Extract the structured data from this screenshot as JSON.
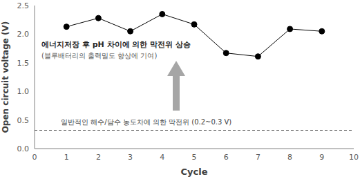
{
  "chart_data": {
    "type": "line",
    "x": [
      1,
      2,
      3,
      4,
      5,
      6,
      7,
      8,
      9
    ],
    "series": [
      {
        "name": "Open circuit voltage",
        "color": "#000000",
        "marker": "circle",
        "values": [
          2.13,
          2.28,
          2.05,
          2.35,
          2.17,
          1.67,
          1.61,
          2.09,
          2.05
        ]
      }
    ],
    "x_label": "Cycle",
    "y_label": "Open circuit voltage (V)",
    "xlim": [
      0,
      10
    ],
    "xticks": [
      0,
      1,
      2,
      3,
      4,
      5,
      6,
      7,
      8,
      9,
      10
    ],
    "ylim": [
      0,
      2.5
    ],
    "yticks": [
      {
        "value": 0,
        "label": "0.0"
      },
      0.5,
      {
        "value": 1,
        "label": "1.0"
      },
      1.5,
      {
        "value": 2,
        "label": "2.0"
      },
      2.5
    ],
    "grid": false,
    "reference_line": {
      "value": 0.32,
      "color": "#595959",
      "line_style": "dashed"
    },
    "annotations": [
      "에너지저장 후 pH 차이에 의한 막전위 상승",
      "(블루배터리의 출력밀도 향상에 기여)",
      "일반적인 해수/담수 농도차에 의한 막전위 (0.2~0.3 V)"
    ]
  }
}
